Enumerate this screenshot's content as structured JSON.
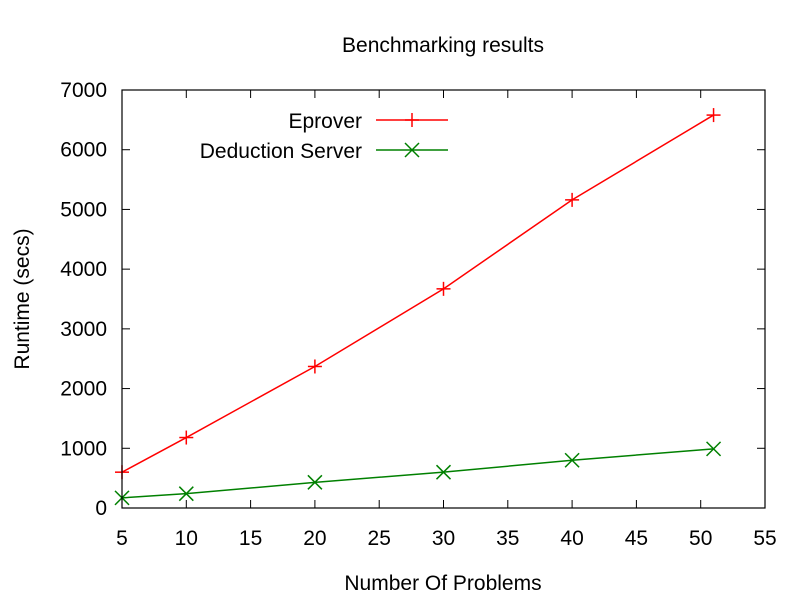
{
  "chart_data": {
    "type": "line",
    "title": "Benchmarking results",
    "xlabel": "Number Of Problems",
    "ylabel": "Runtime (secs)",
    "xlim": [
      5,
      55
    ],
    "ylim": [
      0,
      7000
    ],
    "xticks": [
      5,
      10,
      15,
      20,
      25,
      30,
      35,
      40,
      45,
      50,
      55
    ],
    "yticks": [
      0,
      1000,
      2000,
      3000,
      4000,
      5000,
      6000,
      7000
    ],
    "grid": false,
    "legend_position": "top-left",
    "series": [
      {
        "name": "Eprover",
        "color": "#ff0000",
        "marker": "plus",
        "x": [
          5,
          10,
          20,
          30,
          40,
          51
        ],
        "y": [
          600,
          1180,
          2370,
          3670,
          5160,
          6580
        ]
      },
      {
        "name": "Deduction Server",
        "color": "#008000",
        "marker": "cross",
        "x": [
          5,
          10,
          20,
          30,
          40,
          51
        ],
        "y": [
          170,
          240,
          430,
          600,
          800,
          990
        ]
      }
    ]
  }
}
